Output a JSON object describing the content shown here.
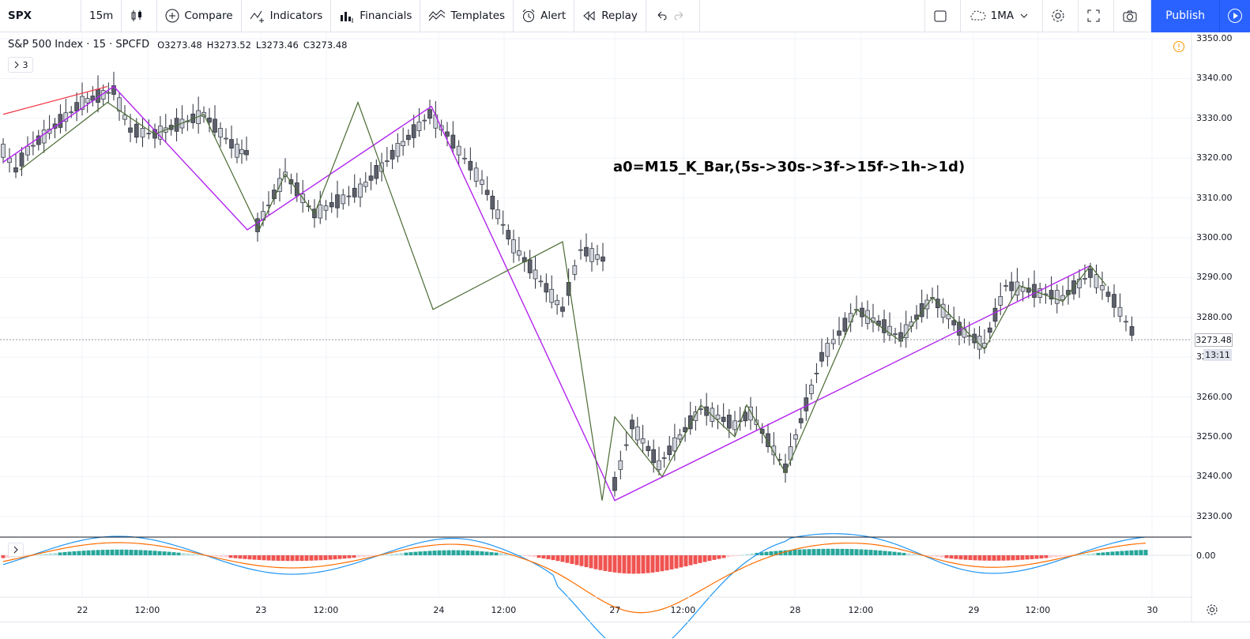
{
  "toolbar": {
    "symbol": "SPX",
    "interval": "15m",
    "compare": "Compare",
    "indicators": "Indicators",
    "financials": "Financials",
    "templates": "Templates",
    "alert": "Alert",
    "replay": "Replay",
    "ma": "1MA",
    "publish": "Publish"
  },
  "legend": {
    "title": "S&P 500 Index · 15 · SPCFD",
    "open": "O3273.48",
    "high": "H3273.52",
    "low": "L3273.46",
    "close": "C3273.48",
    "indicators_count": "3"
  },
  "annotation": "a0=M15_K_Bar,(5s->30s->3f->15f->1h->1d)",
  "price_axis": {
    "labels": [
      "3350.00",
      "3340.00",
      "3330.00",
      "3320.00",
      "3310.00",
      "3300.00",
      "3290.00",
      "3280.00",
      "3270.00",
      "3260.00",
      "3250.00",
      "3240.00",
      "3230.00"
    ],
    "current_price": "3273.48",
    "countdown": "13:11",
    "macd_zero": "0.00"
  },
  "time_axis": {
    "labels": [
      "22",
      "12:00",
      "23",
      "12:00",
      "24",
      "12:00",
      "27",
      "12:00",
      "28",
      "12:00",
      "29",
      "12:00",
      "30"
    ]
  },
  "colors": {
    "bull": "#d1d4dc",
    "bear": "#5d606b",
    "zigzag_major": "#b224ef",
    "zigzag_minor": "#4b6b33",
    "trend_red": "#f23645",
    "macd_line": "#2196f3",
    "signal_line": "#ff6d00"
  },
  "chart_data": {
    "type": "candlestick",
    "symbol": "SPX",
    "timeframe": "15",
    "ylim": [
      3225,
      3352
    ],
    "grid": true,
    "major_zigzag": [
      3319,
      3338,
      3302,
      3333,
      3234,
      3293
    ],
    "minor_zigzag": [
      3317,
      3334,
      3326,
      3331,
      3302,
      3316,
      3306,
      3334,
      3282,
      3299,
      3234,
      3255,
      3240,
      3258,
      3250,
      3258,
      3241,
      3282,
      3274,
      3285,
      3272,
      3288,
      3284,
      3293,
      3288
    ]
  }
}
